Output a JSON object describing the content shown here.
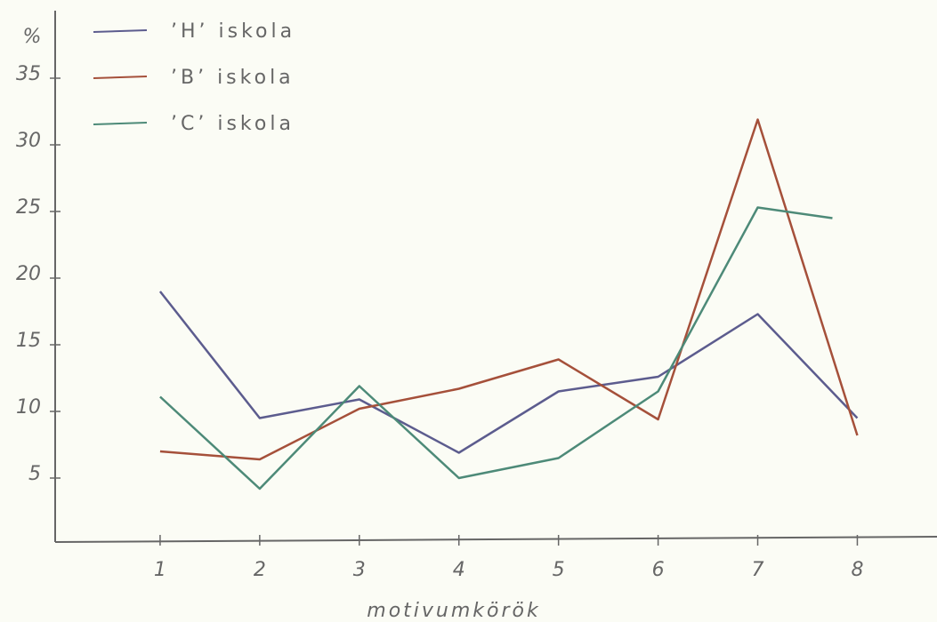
{
  "chart_data": {
    "type": "line",
    "y_label": "%",
    "x_label": "motivumkörök",
    "x": [
      1,
      2,
      3,
      4,
      5,
      6,
      7,
      8
    ],
    "series": [
      {
        "name": "’H’ iskola",
        "color": "#5c5c8e",
        "values": [
          19,
          9.5,
          10.9,
          6.9,
          11.5,
          12.6,
          17.3,
          9.5
        ]
      },
      {
        "name": "’B’ iskola",
        "color": "#a5503a",
        "values": [
          7,
          6.4,
          10.2,
          11.7,
          13.9,
          9.4,
          31.9,
          8.2
        ]
      },
      {
        "name": "’C’ iskola",
        "color": "#4d8a78",
        "x": [
          1,
          2,
          3,
          4,
          5,
          6,
          7,
          7.75
        ],
        "values": [
          11.1,
          4.2,
          11.9,
          5,
          6.5,
          11.5,
          25.3,
          24.5
        ]
      }
    ],
    "xlim": [
      0,
      8.8
    ],
    "ylim": [
      0,
      40
    ],
    "xticks": [
      1,
      2,
      3,
      4,
      5,
      6,
      7,
      8
    ],
    "yticks": [
      5,
      10,
      15,
      20,
      25,
      30,
      35
    ]
  }
}
